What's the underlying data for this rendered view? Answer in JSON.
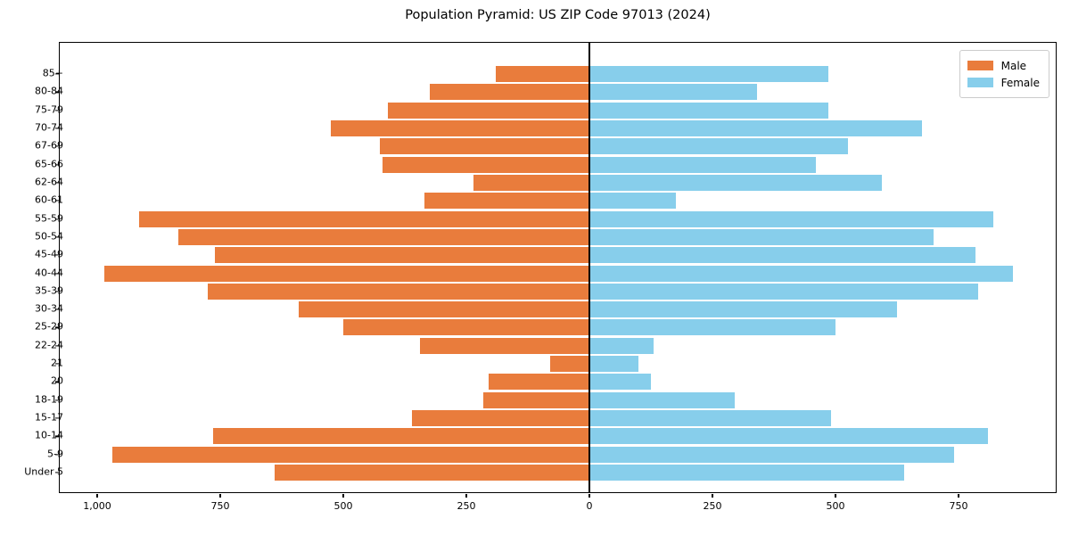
{
  "chart_data": {
    "type": "bar",
    "variant": "population-pyramid",
    "title": "Population Pyramid: US ZIP Code 97013 (2024)",
    "categories": [
      "85+",
      "80-84",
      "75-79",
      "70-74",
      "67-69",
      "65-66",
      "62-64",
      "60-61",
      "55-59",
      "50-54",
      "45-49",
      "40-44",
      "35-39",
      "30-34",
      "25-29",
      "22-24",
      "21",
      "20",
      "18-19",
      "15-17",
      "10-14",
      "5-9",
      "Under 5"
    ],
    "series": [
      {
        "name": "Male",
        "side": "left",
        "color": "#E97C3C",
        "values": [
          190,
          325,
          410,
          525,
          425,
          420,
          235,
          335,
          915,
          835,
          760,
          985,
          775,
          590,
          500,
          345,
          80,
          205,
          215,
          360,
          765,
          970,
          640
        ]
      },
      {
        "name": "Female",
        "side": "right",
        "color": "#87CEEB",
        "values": [
          485,
          340,
          485,
          675,
          525,
          460,
          595,
          175,
          820,
          700,
          785,
          860,
          790,
          625,
          500,
          130,
          100,
          125,
          295,
          490,
          810,
          740,
          640
        ]
      }
    ],
    "x_axis": {
      "tick_values": [
        -1000,
        -750,
        -500,
        -250,
        0,
        250,
        500,
        750
      ],
      "tick_labels": [
        "1,000",
        "750",
        "500",
        "250",
        "0",
        "250",
        "500",
        "750"
      ],
      "xlim": [
        -1076,
        951
      ]
    },
    "y_axis": {
      "tick_labels": [
        "85+",
        "80-84",
        "75-79",
        "70-74",
        "67-69",
        "65-66",
        "62-64",
        "60-61",
        "55-59",
        "50-54",
        "45-49",
        "40-44",
        "35-39",
        "30-34",
        "25-29",
        "22-24",
        "21",
        "20",
        "18-19",
        "15-17",
        "10-14",
        "5-9",
        "Under 5"
      ]
    },
    "legend": {
      "position": "upper-right",
      "entries": [
        "Male",
        "Female"
      ]
    },
    "grid": false,
    "background_color": "#ffffff",
    "zero_line_color": "#000000"
  }
}
